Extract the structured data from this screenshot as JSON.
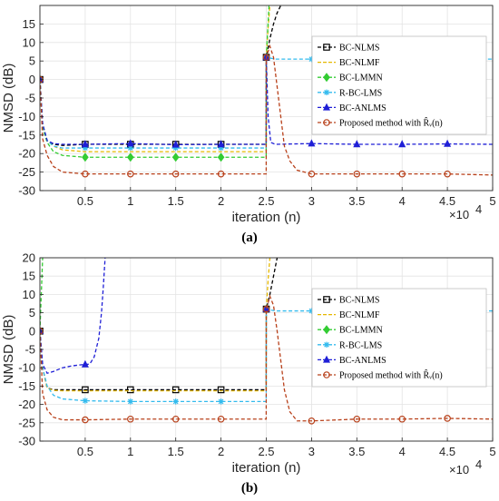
{
  "chart_data": [
    {
      "type": "line",
      "panel_label": "(a)",
      "xlabel": "iteration (n)",
      "ylabel": "NMSD (dB)",
      "x_multiplier": "×10",
      "x_exponent": "4",
      "xlim": [
        0,
        50000
      ],
      "ylim": [
        -30,
        20
      ],
      "xticks": [
        0.5,
        1,
        1.5,
        2,
        2.5,
        3,
        3.5,
        4,
        4.5,
        5
      ],
      "yticks": [
        15,
        10,
        5,
        0,
        -5,
        -10,
        -15,
        -20,
        -25,
        -30
      ],
      "grid": true,
      "legend_position": "right-center",
      "series": [
        {
          "name": "BC-NLMS",
          "color": "#000000",
          "marker": "square",
          "x": [
            0,
            300,
            800,
            1500,
            2500,
            5000,
            10000,
            15000,
            20000,
            24990,
            25000,
            25400,
            25800,
            26200,
            26600
          ],
          "y": [
            0,
            -12,
            -16.5,
            -17.5,
            -17.8,
            -17.5,
            -17.5,
            -17.5,
            -17.5,
            -17.5,
            6,
            11,
            15,
            18,
            20
          ]
        },
        {
          "name": "BC-NLMF",
          "color": "#e6b800",
          "marker": "none",
          "x": [
            0,
            300,
            800,
            1500,
            2500,
            5000,
            10000,
            15000,
            20000,
            24990,
            25000,
            25200,
            25400
          ],
          "y": [
            0,
            -12,
            -16.5,
            -18,
            -19,
            -19.5,
            -19.5,
            -19.5,
            -19.5,
            -19.5,
            6,
            14,
            20
          ]
        },
        {
          "name": "BC-LMMN",
          "color": "#33cc33",
          "marker": "diamond",
          "x": [
            0,
            300,
            800,
            1500,
            2500,
            5000,
            10000,
            15000,
            20000,
            24990,
            25000,
            25150,
            25300
          ],
          "y": [
            0,
            -13,
            -17,
            -19.5,
            -20.5,
            -21,
            -21,
            -21,
            -21,
            -21,
            6,
            13,
            20
          ]
        },
        {
          "name": "R-BC-LMS",
          "color": "#33bbee",
          "marker": "star",
          "x": [
            0,
            300,
            800,
            1500,
            2500,
            5000,
            10000,
            15000,
            20000,
            24990,
            25000,
            26000,
            30000,
            40000,
            50000
          ],
          "y": [
            0,
            -12,
            -16.5,
            -18,
            -18.5,
            -18.5,
            -18.5,
            -18.5,
            -18.5,
            -18.5,
            6,
            5.5,
            5.5,
            5.5,
            5.5
          ]
        },
        {
          "name": "BC-ANLMS",
          "color": "#1f1fd6",
          "marker": "triangle",
          "x": [
            0,
            300,
            800,
            1500,
            2500,
            5000,
            10000,
            15000,
            20000,
            24990,
            25000,
            25200,
            25500,
            26000,
            30000,
            35000,
            40000,
            45000,
            50000
          ],
          "y": [
            0,
            -12,
            -16.5,
            -17.3,
            -17.5,
            -17.5,
            -17.3,
            -17.6,
            -17.5,
            -17.5,
            6,
            -10,
            -17,
            -17.5,
            -17.3,
            -17.5,
            -17.5,
            -17.4,
            -17.5
          ]
        },
        {
          "name": "Proposed method with R̂ᵥ(n)",
          "color": "#b8401a",
          "marker": "circle",
          "x": [
            0,
            300,
            800,
            1500,
            2500,
            5000,
            10000,
            15000,
            20000,
            24990,
            25000,
            25400,
            25800,
            26200,
            26600,
            27000,
            27600,
            28400,
            30000,
            35000,
            40000,
            45000,
            50000
          ],
          "y": [
            0,
            -16,
            -20.5,
            -23.5,
            -25,
            -25.5,
            -25.5,
            -25.5,
            -25.5,
            -25.5,
            6,
            9,
            6,
            -2,
            -10,
            -18,
            -22,
            -24.5,
            -25.5,
            -25.5,
            -25.5,
            -25.5,
            -25.8
          ]
        }
      ]
    },
    {
      "type": "line",
      "panel_label": "(b)",
      "xlabel": "iteration (n)",
      "ylabel": "NMSD (dB)",
      "x_multiplier": "×10",
      "x_exponent": "4",
      "xlim": [
        0,
        50000
      ],
      "ylim": [
        -30,
        20
      ],
      "xticks": [
        0.5,
        1,
        1.5,
        2,
        2.5,
        3,
        3.5,
        4,
        4.5,
        5
      ],
      "yticks": [
        20,
        15,
        10,
        5,
        0,
        -5,
        -10,
        -15,
        -20,
        -25,
        -30
      ],
      "grid": true,
      "legend_position": "right-center",
      "series": [
        {
          "name": "BC-NLMS",
          "color": "#000000",
          "marker": "square",
          "x": [
            0,
            300,
            800,
            1500,
            2500,
            5000,
            10000,
            15000,
            20000,
            24990,
            25000,
            25400,
            25800,
            26200
          ],
          "y": [
            0,
            -10,
            -15.5,
            -16,
            -16,
            -16,
            -16,
            -16,
            -16,
            -16,
            6,
            10,
            15,
            20
          ]
        },
        {
          "name": "BC-NLMF",
          "color": "#e6b800",
          "marker": "none",
          "x": [
            0,
            300,
            800,
            1500,
            2500,
            5000,
            10000,
            15000,
            20000,
            24990,
            25000,
            25200,
            25400
          ],
          "y": [
            0,
            -10,
            -15.5,
            -16.2,
            -16.3,
            -16.3,
            -16.3,
            -16.3,
            -16.3,
            -16.3,
            6,
            14,
            20
          ]
        },
        {
          "name": "BC-LMMN",
          "color": "#33cc33",
          "marker": "diamond",
          "x": [
            0,
            150,
            300
          ],
          "y": [
            0,
            10,
            20
          ]
        },
        {
          "name": "R-BC-LMS",
          "color": "#33bbee",
          "marker": "star",
          "x": [
            0,
            300,
            800,
            1500,
            2500,
            5000,
            10000,
            15000,
            20000,
            24990,
            25000,
            26000,
            30000,
            40000,
            50000
          ],
          "y": [
            0,
            -10,
            -15,
            -17.5,
            -18.5,
            -19,
            -19.2,
            -19.2,
            -19.2,
            -19.2,
            6,
            5.5,
            5.5,
            5.5,
            5.5
          ]
        },
        {
          "name": "BC-ANLMS",
          "color": "#1f1fd6",
          "marker": "triangle",
          "x": [
            0,
            300,
            800,
            1500,
            2500,
            3500,
            4500,
            5500,
            6000,
            6500,
            6800,
            7000,
            7200
          ],
          "y": [
            0,
            -9,
            -11.5,
            -11,
            -10,
            -9.5,
            -9.2,
            -9,
            -7,
            -2,
            5,
            12,
            20
          ]
        },
        {
          "name": "Proposed method with R̂ᵥ(n)",
          "color": "#b8401a",
          "marker": "circle",
          "x": [
            0,
            300,
            800,
            1500,
            2500,
            5000,
            10000,
            15000,
            20000,
            24990,
            25000,
            25400,
            25800,
            26200,
            26600,
            27000,
            27600,
            28400,
            30000,
            35000,
            40000,
            45000,
            50000
          ],
          "y": [
            0,
            -17,
            -21.5,
            -23.5,
            -24.2,
            -24.2,
            -24,
            -24,
            -24,
            -24,
            6,
            9.5,
            7,
            0,
            -8,
            -16,
            -22,
            -24.5,
            -24.5,
            -24,
            -24,
            -23.8,
            -24
          ]
        }
      ]
    }
  ]
}
